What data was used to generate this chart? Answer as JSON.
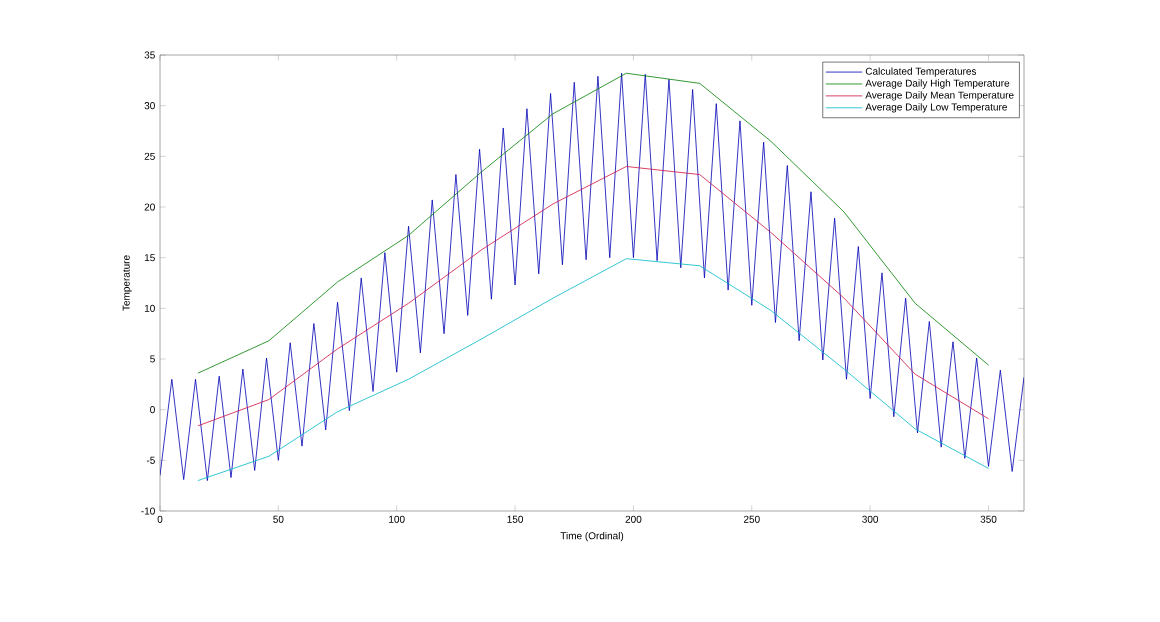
{
  "chart_data": {
    "type": "line",
    "xlabel": "Time (Ordinal)",
    "ylabel": "Temperature",
    "xlim": [
      0,
      365
    ],
    "ylim": [
      -10,
      35
    ],
    "xticks": [
      0,
      50,
      100,
      150,
      200,
      250,
      300,
      350
    ],
    "yticks": [
      -10,
      -5,
      0,
      5,
      10,
      15,
      20,
      25,
      30,
      35
    ],
    "grid": false,
    "legend": "top right",
    "marker": "none",
    "line_style": "solid",
    "series": [
      {
        "name": "Calculated Temperatures",
        "color": "#0000b4",
        "x": [
          0,
          5,
          10,
          15,
          20,
          25,
          30,
          35,
          40,
          45,
          50,
          55,
          60,
          65,
          70,
          75,
          80,
          85,
          90,
          95,
          100,
          105,
          110,
          115,
          120,
          125,
          130,
          135,
          140,
          145,
          150,
          155,
          160,
          165,
          170,
          175,
          180,
          185,
          190,
          195,
          200,
          205,
          210,
          215,
          220,
          225,
          230,
          235,
          240,
          245,
          250,
          255,
          260,
          265,
          270,
          275,
          280,
          285,
          290,
          295,
          300,
          305,
          310,
          315,
          320,
          325,
          330,
          335,
          340,
          345,
          350,
          355,
          360,
          365
        ],
        "values": [
          -6.5,
          3.0,
          -6.9,
          3.0,
          -7.0,
          3.3,
          -6.7,
          4.0,
          -6.0,
          5.1,
          -5.0,
          6.6,
          -3.6,
          8.5,
          -2.0,
          10.6,
          -0.1,
          13.0,
          1.8,
          15.5,
          3.7,
          18.1,
          5.6,
          20.7,
          7.5,
          23.2,
          9.3,
          25.7,
          10.9,
          27.8,
          12.3,
          29.7,
          13.4,
          31.2,
          14.3,
          32.3,
          14.8,
          32.9,
          15.0,
          33.2,
          15.0,
          33.1,
          14.7,
          32.6,
          14.0,
          31.6,
          13.0,
          30.2,
          11.8,
          28.5,
          10.3,
          26.4,
          8.6,
          24.1,
          6.8,
          21.5,
          4.9,
          18.9,
          3.0,
          16.1,
          1.1,
          13.5,
          -0.7,
          11.0,
          -2.3,
          8.7,
          -3.7,
          6.7,
          -4.8,
          5.1,
          -5.6,
          3.9,
          -6.1,
          3.2
        ]
      },
      {
        "name": "Average Daily High Temperature",
        "color": "#008000",
        "x": [
          16,
          46,
          75,
          105,
          136,
          166,
          197,
          228,
          258,
          289,
          319,
          350
        ],
        "values": [
          3.6,
          6.8,
          12.6,
          17.2,
          23.5,
          29.2,
          33.2,
          32.2,
          26.5,
          19.5,
          10.5,
          4.4
        ]
      },
      {
        "name": "Average Daily Mean Temperature",
        "color": "#d01040",
        "x": [
          16,
          46,
          75,
          105,
          136,
          166,
          197,
          228,
          258,
          289,
          319,
          350
        ],
        "values": [
          -1.6,
          1.0,
          6.0,
          10.5,
          15.8,
          20.3,
          24.0,
          23.2,
          17.5,
          11.0,
          3.5,
          -0.9
        ]
      },
      {
        "name": "Average Daily Low Temperature",
        "color": "#00b8c8",
        "x": [
          16,
          46,
          75,
          105,
          136,
          166,
          197,
          228,
          258,
          289,
          319,
          350
        ],
        "values": [
          -7.0,
          -4.6,
          -0.2,
          3.0,
          7.0,
          11.0,
          14.9,
          14.2,
          9.8,
          4.0,
          -1.9,
          -5.8
        ]
      }
    ]
  }
}
